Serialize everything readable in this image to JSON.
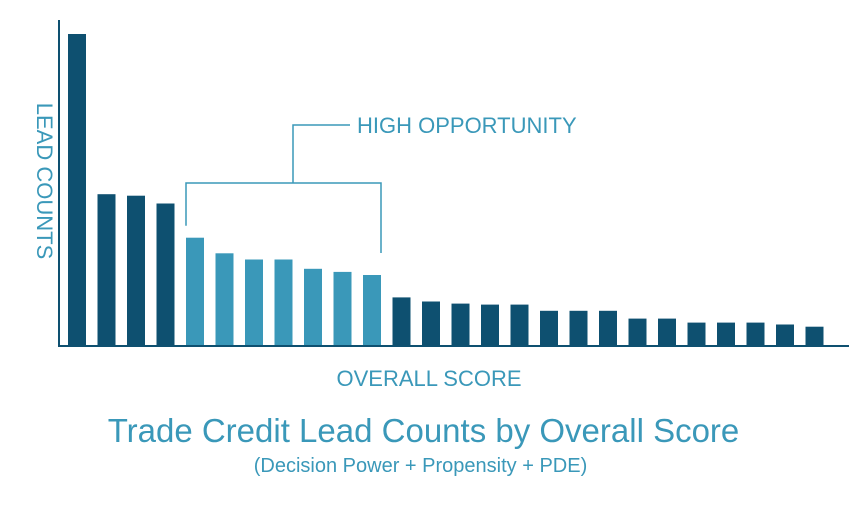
{
  "chart_data": {
    "type": "bar",
    "title": "Trade Credit Lead Counts by Overall Score",
    "subtitle": "(Decision Power + Propensity + PDE)",
    "xlabel": "OVERALL SCORE",
    "ylabel": "LEAD COUNTS",
    "ylim": [
      0,
      100
    ],
    "grid": false,
    "values": [
      100,
      48.5,
      48,
      45.5,
      34.5,
      29.5,
      27.5,
      27.5,
      24.5,
      23.5,
      22.5,
      15.3,
      14,
      13.3,
      13,
      13,
      11,
      11,
      11,
      8.5,
      8.5,
      7.2,
      7.2,
      7.2,
      6.6,
      5.9
    ],
    "highlight_range": [
      4,
      10
    ],
    "annotation": "HIGH OPPORTUNITY",
    "colors": {
      "bar": "#0e5070",
      "highlight_bar": "#3a98b9",
      "axis": "#0e5070",
      "text": "#3a98b9"
    }
  }
}
